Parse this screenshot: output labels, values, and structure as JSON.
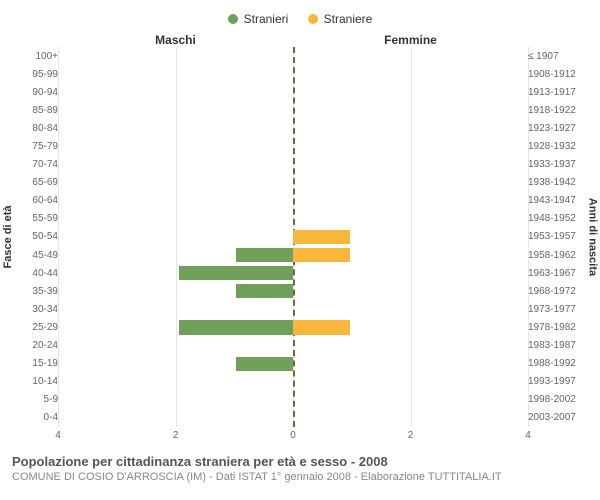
{
  "legend": {
    "male": {
      "label": "Stranieri",
      "color": "#71a05a"
    },
    "female": {
      "label": "Straniere",
      "color": "#f6b73c"
    }
  },
  "headers": {
    "left": "Maschi",
    "right": "Femmine"
  },
  "axes": {
    "y_left_title": "Fasce di età",
    "y_right_title": "Anni di nascita",
    "x_max": 4,
    "x_ticks": [
      4,
      2,
      0,
      2,
      4
    ],
    "grid_positions_pct": [
      0,
      25,
      50,
      75,
      100
    ],
    "grid_color": "#e6e6e6",
    "center_line_color": "#6b6b3a"
  },
  "rows": [
    {
      "age": "100+",
      "birth": "≤ 1907",
      "m": 0,
      "f": 0
    },
    {
      "age": "95-99",
      "birth": "1908-1912",
      "m": 0,
      "f": 0
    },
    {
      "age": "90-94",
      "birth": "1913-1917",
      "m": 0,
      "f": 0
    },
    {
      "age": "85-89",
      "birth": "1918-1922",
      "m": 0,
      "f": 0
    },
    {
      "age": "80-84",
      "birth": "1923-1927",
      "m": 0,
      "f": 0
    },
    {
      "age": "75-79",
      "birth": "1928-1932",
      "m": 0,
      "f": 0
    },
    {
      "age": "70-74",
      "birth": "1933-1937",
      "m": 0,
      "f": 0
    },
    {
      "age": "65-69",
      "birth": "1938-1942",
      "m": 0,
      "f": 0
    },
    {
      "age": "60-64",
      "birth": "1943-1947",
      "m": 0,
      "f": 0
    },
    {
      "age": "55-59",
      "birth": "1948-1952",
      "m": 0,
      "f": 0
    },
    {
      "age": "50-54",
      "birth": "1953-1957",
      "m": 0,
      "f": 1
    },
    {
      "age": "45-49",
      "birth": "1958-1962",
      "m": 1,
      "f": 1
    },
    {
      "age": "40-44",
      "birth": "1963-1967",
      "m": 2,
      "f": 0
    },
    {
      "age": "35-39",
      "birth": "1968-1972",
      "m": 1,
      "f": 0
    },
    {
      "age": "30-34",
      "birth": "1973-1977",
      "m": 0,
      "f": 0
    },
    {
      "age": "25-29",
      "birth": "1978-1982",
      "m": 2,
      "f": 1
    },
    {
      "age": "20-24",
      "birth": "1983-1987",
      "m": 0,
      "f": 0
    },
    {
      "age": "15-19",
      "birth": "1988-1992",
      "m": 1,
      "f": 0
    },
    {
      "age": "10-14",
      "birth": "1993-1997",
      "m": 0,
      "f": 0
    },
    {
      "age": "5-9",
      "birth": "1998-2002",
      "m": 0,
      "f": 0
    },
    {
      "age": "0-4",
      "birth": "2003-2007",
      "m": 0,
      "f": 0
    }
  ],
  "footer": {
    "title": "Popolazione per cittadinanza straniera per età e sesso - 2008",
    "subtitle": "COMUNE DI COSIO D'ARROSCIA (IM) - Dati ISTAT 1° gennaio 2008 - Elaborazione TUTTITALIA.IT"
  }
}
